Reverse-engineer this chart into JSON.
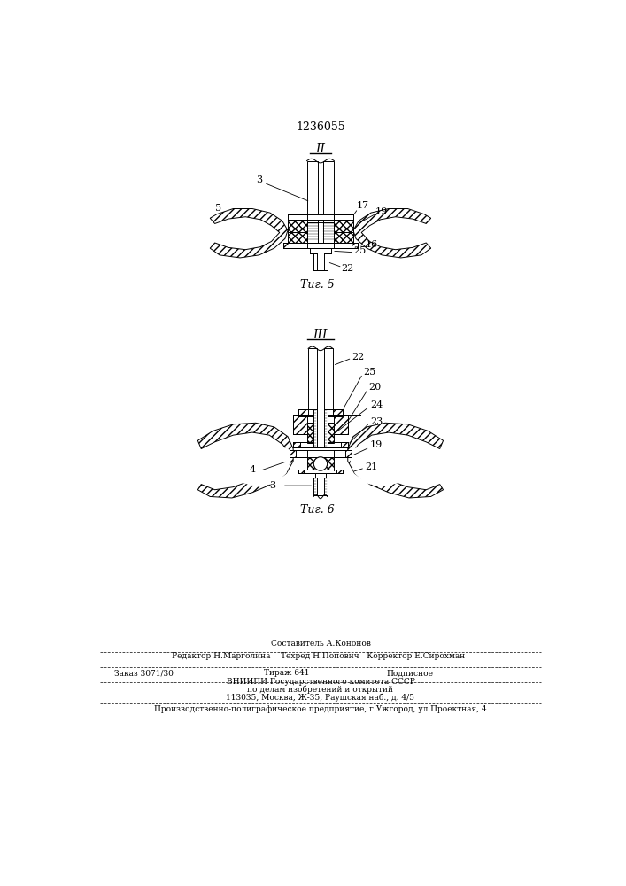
{
  "patent_number": "1236055",
  "fig5_label": "Τиг. 5",
  "fig6_label": "Τиг. 6",
  "roman2": "II",
  "roman3": "III",
  "bg_color": "#ffffff",
  "line_color": "#000000"
}
